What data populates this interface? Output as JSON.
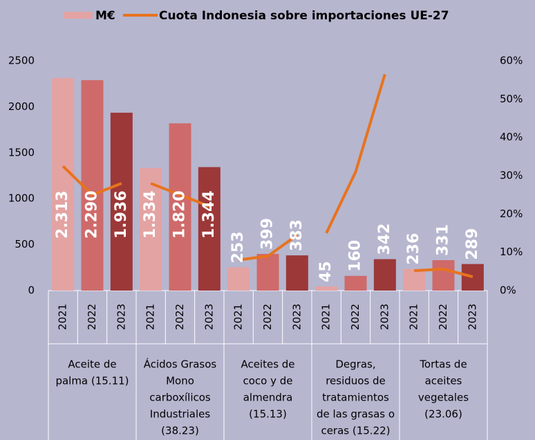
{
  "chart_data": {
    "type": "bar",
    "groups": [
      {
        "label": [
          "Aceite de",
          "palma (15.11)"
        ],
        "categories": [
          "2021",
          "2022",
          "2023"
        ]
      },
      {
        "label": [
          "Ácidos Grasos",
          "Mono",
          "carboxílicos",
          "Industriales",
          "(38.23)"
        ],
        "categories": [
          "2021",
          "2022",
          "2023"
        ]
      },
      {
        "label": [
          "Aceites de",
          "coco y de",
          "almendra",
          "(15.13)"
        ],
        "categories": [
          "2021",
          "2022",
          "2023"
        ]
      },
      {
        "label": [
          "Degras,",
          "residuos de",
          "tratamientos",
          "de las grasas o",
          "ceras (15.22)"
        ],
        "categories": [
          "2021",
          "2022",
          "2023"
        ]
      },
      {
        "label": [
          "Tortas de",
          "aceites",
          "vegetales",
          "(23.06)"
        ],
        "categories": [
          "2021",
          "2022",
          "2023"
        ]
      }
    ],
    "series": [
      {
        "name": "M€",
        "color": "#e3a3a3",
        "colors": [
          "#e3a3a3",
          "#cf6a6a",
          "#9c3838"
        ],
        "values": [
          2313,
          2290,
          1936,
          1334,
          1820,
          1344,
          253,
          399,
          383,
          45,
          160,
          342,
          236,
          331,
          289
        ],
        "value_labels": [
          "2.313",
          "2.290",
          "1.936",
          "1.334",
          "1.820",
          "1.344",
          "253",
          "399",
          "383",
          "45",
          "160",
          "342",
          "236",
          "331",
          "289"
        ]
      },
      {
        "name": "Cuota Indonesia sobre importaciones UE-27",
        "type": "line",
        "axis": "y2",
        "color": "#e8731e",
        "values": [
          32.5,
          25,
          28,
          28,
          25,
          22,
          8,
          9,
          14.5,
          15,
          31,
          56.5,
          5.2,
          5.6,
          3.6
        ]
      }
    ],
    "ylim": [
      0,
      2500
    ],
    "yticks": [
      0,
      500,
      1000,
      1500,
      2000,
      2500
    ],
    "y2lim": [
      0,
      60
    ],
    "y2ticks": [
      {
        "value": 0,
        "label": "0%"
      },
      {
        "value": 10,
        "label": "10%"
      },
      {
        "value": 20,
        "label": "20%"
      },
      {
        "value": 30,
        "label": "30%"
      },
      {
        "value": 40,
        "label": "40%"
      },
      {
        "value": 50,
        "label": "50%"
      },
      {
        "value": 60,
        "label": "60%"
      }
    ]
  }
}
